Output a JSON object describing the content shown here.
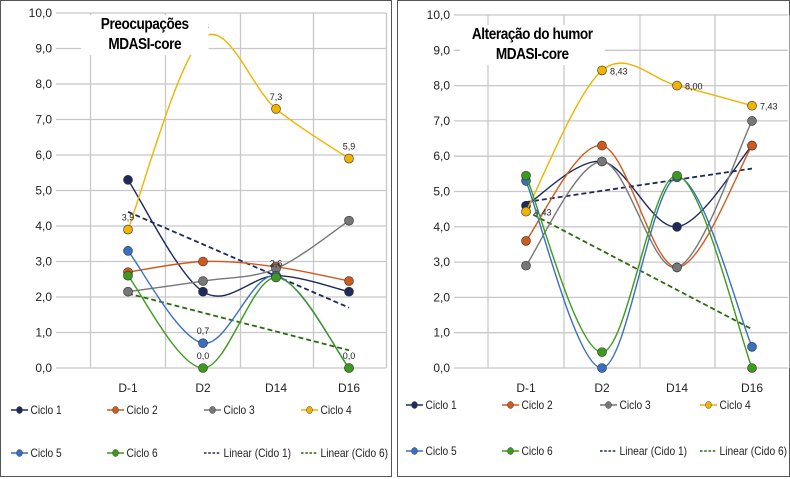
{
  "chart_data": [
    {
      "type": "line",
      "title": "Preocupações\nMDASI-core",
      "title_lines": [
        "Preocupações",
        "MDASI-core"
      ],
      "categories": [
        "D-1",
        "D2",
        "D14",
        "D16"
      ],
      "ylim": [
        0,
        10
      ],
      "yticks": [
        "0,0",
        "1,0",
        "2,0",
        "3,0",
        "4,0",
        "5,0",
        "6,0",
        "7,0",
        "8,0",
        "9,0",
        "10,0"
      ],
      "grid": true,
      "legend": "bottom",
      "series": [
        {
          "name": "Ciclo 1",
          "color": "#1f2a5c",
          "values": [
            5.3,
            2.15,
            2.6,
            2.15
          ]
        },
        {
          "name": "Ciclo 2",
          "color": "#d05a1e",
          "values": [
            2.7,
            3.0,
            2.85,
            2.45
          ]
        },
        {
          "name": "Ciclo 3",
          "color": "#777777",
          "values": [
            2.15,
            2.45,
            2.8,
            4.15
          ]
        },
        {
          "name": "Ciclo 4",
          "color": "#f0b400",
          "values": [
            3.9,
            9.3,
            7.3,
            5.9
          ],
          "labels": [
            "3,9",
            "9,3",
            "7,3",
            "5,9"
          ]
        },
        {
          "name": "Ciclo 5",
          "color": "#3a6fc0",
          "values": [
            3.3,
            0.7,
            2.6,
            0.0
          ],
          "labels": [
            "",
            "0,7",
            "2,6",
            ""
          ]
        },
        {
          "name": "Ciclo 6",
          "color": "#3d9a1e",
          "values": [
            2.6,
            0.0,
            2.55,
            0.0
          ],
          "labels": [
            "",
            "0,0",
            "",
            "0,0"
          ]
        }
      ],
      "trendlines": [
        {
          "name": "Linear (Cido 1)",
          "color": "#1f2a5c",
          "values": [
            4.4,
            1.7
          ]
        },
        {
          "name": "Linear (Cido 6)",
          "color": "#2d6a10",
          "values": [
            2.1,
            0.5
          ]
        }
      ]
    },
    {
      "type": "line",
      "title": "Alteração do humor\nMDASI-core",
      "title_lines": [
        "Alteração do humor",
        "MDASI-core"
      ],
      "categories": [
        "D-1",
        "D2",
        "D14",
        "D16"
      ],
      "ylim": [
        0,
        10
      ],
      "yticks": [
        "0,0",
        "1,0",
        "2,0",
        "3,0",
        "4,0",
        "5,0",
        "6,0",
        "7,0",
        "8,0",
        "9,0",
        "10,0"
      ],
      "grid": true,
      "legend": "bottom",
      "series": [
        {
          "name": "Ciclo 1",
          "color": "#1f2a5c",
          "values": [
            4.6,
            5.85,
            4.0,
            6.3
          ]
        },
        {
          "name": "Ciclo 2",
          "color": "#d05a1e",
          "values": [
            3.6,
            6.3,
            2.85,
            6.3
          ]
        },
        {
          "name": "Ciclo 3",
          "color": "#777777",
          "values": [
            2.9,
            5.85,
            2.85,
            7.0
          ]
        },
        {
          "name": "Ciclo 4",
          "color": "#f0b400",
          "values": [
            4.43,
            8.43,
            8.0,
            7.43
          ],
          "labels": [
            "4,43",
            "8,43",
            "8,00",
            "7,43"
          ]
        },
        {
          "name": "Ciclo 5",
          "color": "#3a6fc0",
          "values": [
            5.3,
            0.0,
            5.4,
            0.6
          ]
        },
        {
          "name": "Ciclo 6",
          "color": "#3d9a1e",
          "values": [
            5.45,
            0.45,
            5.45,
            0.0
          ]
        }
      ],
      "trendlines": [
        {
          "name": "Linear (Cido 1)",
          "color": "#1f2a5c",
          "values": [
            4.7,
            5.65
          ]
        },
        {
          "name": "Linear (Cido 6)",
          "color": "#2d6a10",
          "values": [
            4.45,
            1.1
          ]
        }
      ]
    }
  ]
}
